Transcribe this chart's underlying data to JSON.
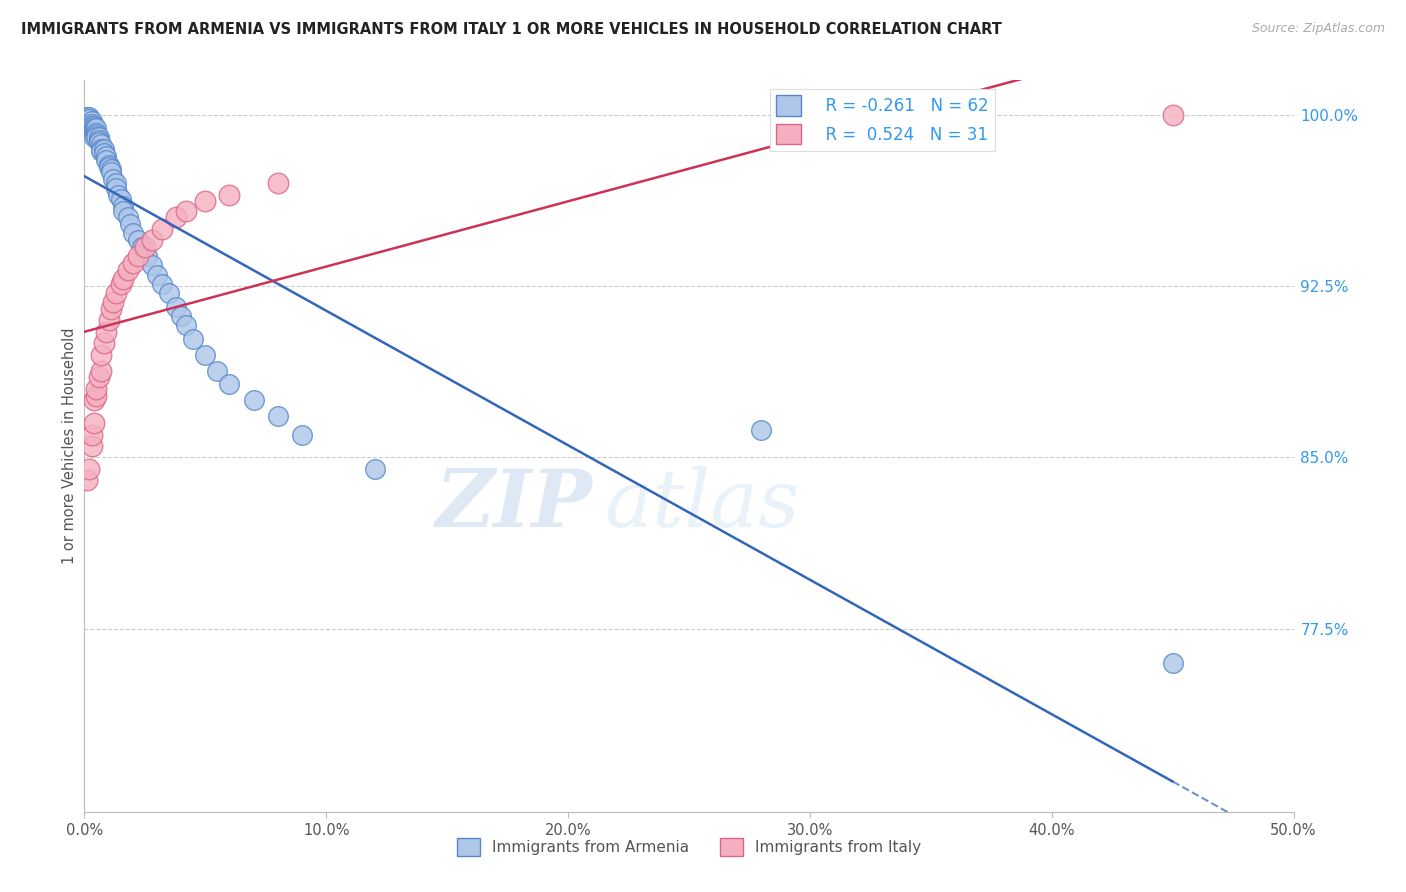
{
  "title": "IMMIGRANTS FROM ARMENIA VS IMMIGRANTS FROM ITALY 1 OR MORE VEHICLES IN HOUSEHOLD CORRELATION CHART",
  "source": "Source: ZipAtlas.com",
  "ylabel": "1 or more Vehicles in Household",
  "xmin": 0.0,
  "xmax": 0.5,
  "ymin": 0.695,
  "ymax": 1.015,
  "yticks": [
    0.775,
    0.85,
    0.925,
    1.0
  ],
  "ytick_labels": [
    "77.5%",
    "85.0%",
    "92.5%",
    "100.0%"
  ],
  "xticks": [
    0.0,
    0.1,
    0.2,
    0.3,
    0.4,
    0.5
  ],
  "xtick_labels": [
    "0.0%",
    "10.0%",
    "20.0%",
    "30.0%",
    "40.0%",
    "50.0%"
  ],
  "legend_r_armenia": "-0.261",
  "legend_n_armenia": "62",
  "legend_r_italy": "0.524",
  "legend_n_italy": "31",
  "armenia_color": "#aec6e8",
  "italy_color": "#f4afc0",
  "armenia_edge": "#5588cc",
  "italy_edge": "#dd6688",
  "trend_armenia_color": "#3366bb",
  "trend_italy_color": "#cc3355",
  "watermark_zip": "ZIP",
  "watermark_atlas": "atlas",
  "armenia_x": [
    0.001,
    0.001,
    0.002,
    0.002,
    0.002,
    0.003,
    0.003,
    0.003,
    0.003,
    0.004,
    0.004,
    0.004,
    0.004,
    0.004,
    0.005,
    0.005,
    0.005,
    0.005,
    0.006,
    0.006,
    0.006,
    0.007,
    0.007,
    0.007,
    0.008,
    0.008,
    0.009,
    0.009,
    0.01,
    0.01,
    0.011,
    0.011,
    0.012,
    0.013,
    0.013,
    0.014,
    0.015,
    0.016,
    0.016,
    0.018,
    0.019,
    0.02,
    0.022,
    0.024,
    0.026,
    0.028,
    0.03,
    0.032,
    0.035,
    0.038,
    0.04,
    0.042,
    0.045,
    0.05,
    0.055,
    0.06,
    0.07,
    0.08,
    0.09,
    0.12,
    0.28,
    0.45
  ],
  "armenia_y": [
    0.999,
    0.998,
    0.999,
    0.998,
    0.996,
    0.997,
    0.996,
    0.995,
    0.993,
    0.995,
    0.994,
    0.993,
    0.992,
    0.99,
    0.994,
    0.992,
    0.991,
    0.99,
    0.99,
    0.989,
    0.988,
    0.987,
    0.985,
    0.984,
    0.985,
    0.983,
    0.982,
    0.98,
    0.978,
    0.977,
    0.976,
    0.975,
    0.972,
    0.97,
    0.968,
    0.965,
    0.963,
    0.96,
    0.958,
    0.955,
    0.952,
    0.948,
    0.945,
    0.942,
    0.938,
    0.934,
    0.93,
    0.926,
    0.922,
    0.916,
    0.912,
    0.908,
    0.902,
    0.895,
    0.888,
    0.882,
    0.875,
    0.868,
    0.86,
    0.845,
    0.862,
    0.76
  ],
  "italy_x": [
    0.001,
    0.002,
    0.003,
    0.003,
    0.004,
    0.004,
    0.005,
    0.005,
    0.006,
    0.007,
    0.007,
    0.008,
    0.009,
    0.01,
    0.011,
    0.012,
    0.013,
    0.015,
    0.016,
    0.018,
    0.02,
    0.022,
    0.025,
    0.028,
    0.032,
    0.038,
    0.042,
    0.05,
    0.06,
    0.08,
    0.45
  ],
  "italy_y": [
    0.84,
    0.845,
    0.855,
    0.86,
    0.865,
    0.875,
    0.877,
    0.88,
    0.885,
    0.888,
    0.895,
    0.9,
    0.905,
    0.91,
    0.915,
    0.918,
    0.922,
    0.926,
    0.928,
    0.932,
    0.935,
    0.938,
    0.942,
    0.945,
    0.95,
    0.955,
    0.958,
    0.962,
    0.965,
    0.97,
    1.0
  ]
}
